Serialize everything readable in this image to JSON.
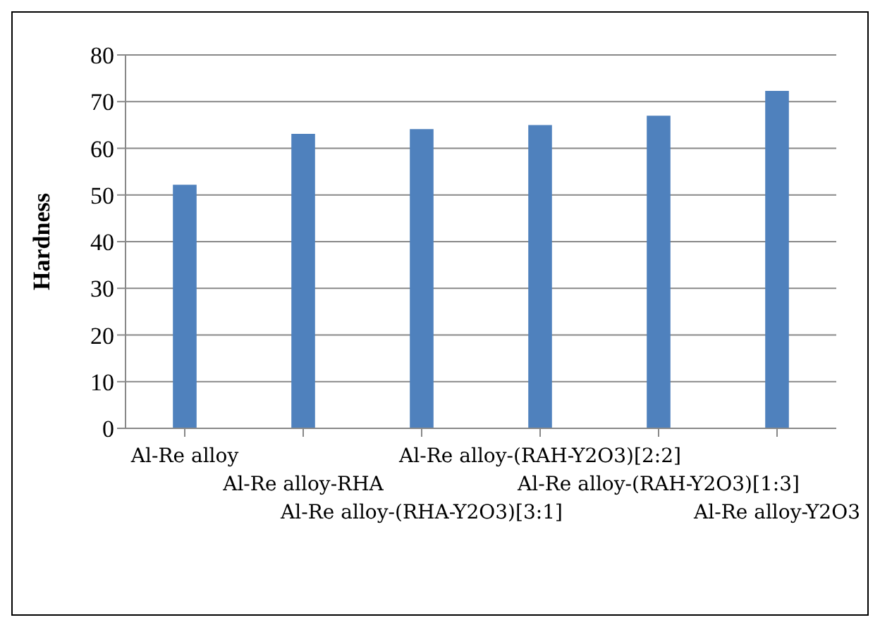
{
  "chart_data": {
    "type": "bar",
    "ylabel": "Hardness",
    "categories": [
      "Al-Re alloy",
      "Al-Re alloy-RHA",
      "Al-Re alloy-(RHA-Y2O3)[3:1]",
      "Al-Re alloy-(RAH-Y2O3)[2:2]",
      "Al-Re alloy-(RAH-Y2O3)[1:3]",
      "Al-Re alloy-Y2O3"
    ],
    "values": [
      52.2,
      63.1,
      64.1,
      65,
      67,
      72.3
    ],
    "color": "#4f81bd",
    "ylim": [
      0,
      80
    ],
    "yticks": [
      0,
      10,
      20,
      30,
      40,
      50,
      60,
      70,
      80
    ],
    "grid": "y"
  }
}
